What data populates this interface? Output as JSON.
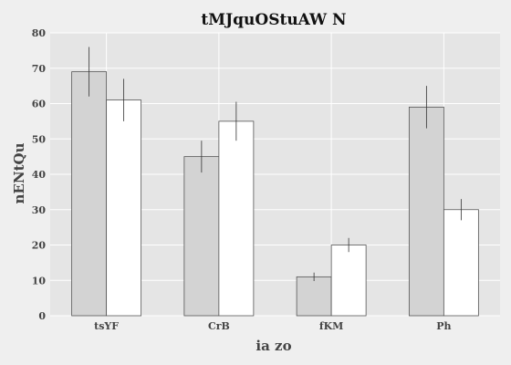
{
  "chart_data": {
    "type": "bar",
    "title": "tMJquOStuAW N",
    "xlabel": "ia zo",
    "ylabel": "nENtQu",
    "categories": [
      "tsYF",
      "CrB",
      "fKM",
      "Ph"
    ],
    "series": [
      {
        "values": [
          69,
          45,
          11,
          59
        ],
        "errors": [
          7,
          4.5,
          1.2,
          6
        ],
        "color": "#d3d3d3"
      },
      {
        "values": [
          61,
          55,
          20,
          30
        ],
        "errors": [
          6,
          5.5,
          2,
          3
        ],
        "color": "#ffffff"
      }
    ],
    "ylim": [
      0,
      80
    ],
    "yticks": [
      0,
      10,
      20,
      30,
      40,
      50,
      60,
      70,
      80
    ],
    "grid": true,
    "background": "#e5e5e5",
    "bar_edge_color": "#555555"
  }
}
